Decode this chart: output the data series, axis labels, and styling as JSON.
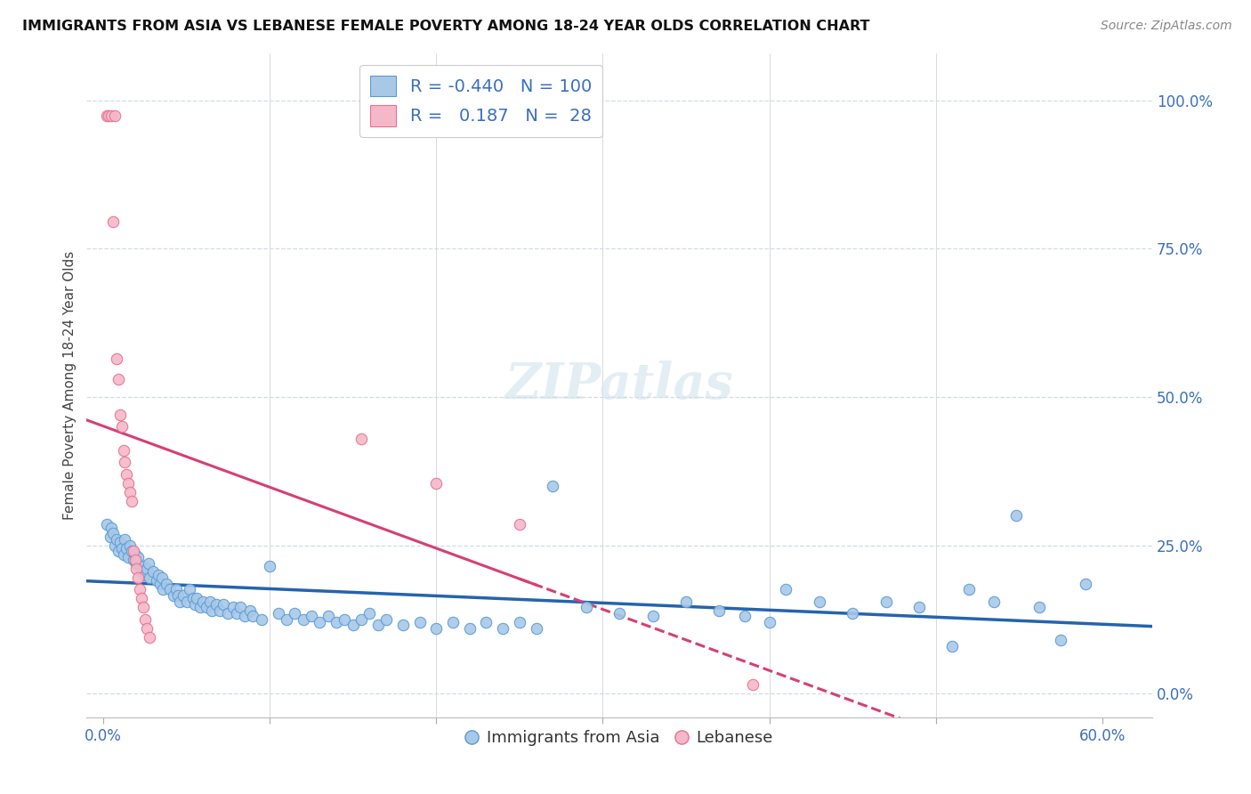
{
  "title": "IMMIGRANTS FROM ASIA VS LEBANESE FEMALE POVERTY AMONG 18-24 YEAR OLDS CORRELATION CHART",
  "source": "Source: ZipAtlas.com",
  "ylabel": "Female Poverty Among 18-24 Year Olds",
  "xlim": [
    -0.01,
    0.63
  ],
  "ylim": [
    -0.04,
    1.08
  ],
  "xlabel_ticks_show": [
    "0.0%",
    "60.0%"
  ],
  "xlabel_vals_show": [
    0.0,
    0.6
  ],
  "xlabel_ticks_minor": [
    0.1,
    0.2,
    0.3,
    0.4,
    0.5
  ],
  "ylabel_ticks": [
    "0.0%",
    "25.0%",
    "50.0%",
    "75.0%",
    "100.0%"
  ],
  "ylabel_vals": [
    0.0,
    0.25,
    0.5,
    0.75,
    1.0
  ],
  "watermark": "ZIPatlas",
  "blue_color": "#a8c8e8",
  "blue_edge_color": "#5b9bd5",
  "blue_line_color": "#2563ae",
  "pink_color": "#f4b8c8",
  "pink_edge_color": "#e87090",
  "pink_line_color": "#d64070",
  "grid_color": "#d0dce8",
  "background_color": "#ffffff",
  "text_color_blue": "#3a6fbf",
  "text_color_dark": "#444444",
  "scatter_blue": [
    [
      0.002,
      0.285
    ],
    [
      0.004,
      0.265
    ],
    [
      0.005,
      0.28
    ],
    [
      0.006,
      0.27
    ],
    [
      0.007,
      0.25
    ],
    [
      0.008,
      0.26
    ],
    [
      0.009,
      0.24
    ],
    [
      0.01,
      0.255
    ],
    [
      0.011,
      0.245
    ],
    [
      0.012,
      0.235
    ],
    [
      0.013,
      0.26
    ],
    [
      0.014,
      0.245
    ],
    [
      0.015,
      0.23
    ],
    [
      0.016,
      0.25
    ],
    [
      0.017,
      0.24
    ],
    [
      0.018,
      0.225
    ],
    [
      0.019,
      0.235
    ],
    [
      0.02,
      0.22
    ],
    [
      0.021,
      0.23
    ],
    [
      0.022,
      0.215
    ],
    [
      0.023,
      0.205
    ],
    [
      0.024,
      0.215
    ],
    [
      0.025,
      0.2
    ],
    [
      0.026,
      0.21
    ],
    [
      0.027,
      0.22
    ],
    [
      0.028,
      0.195
    ],
    [
      0.03,
      0.205
    ],
    [
      0.032,
      0.19
    ],
    [
      0.033,
      0.2
    ],
    [
      0.034,
      0.185
    ],
    [
      0.035,
      0.195
    ],
    [
      0.036,
      0.175
    ],
    [
      0.038,
      0.185
    ],
    [
      0.04,
      0.175
    ],
    [
      0.042,
      0.165
    ],
    [
      0.044,
      0.175
    ],
    [
      0.045,
      0.165
    ],
    [
      0.046,
      0.155
    ],
    [
      0.048,
      0.165
    ],
    [
      0.05,
      0.155
    ],
    [
      0.052,
      0.175
    ],
    [
      0.054,
      0.16
    ],
    [
      0.055,
      0.15
    ],
    [
      0.056,
      0.16
    ],
    [
      0.058,
      0.145
    ],
    [
      0.06,
      0.155
    ],
    [
      0.062,
      0.145
    ],
    [
      0.064,
      0.155
    ],
    [
      0.065,
      0.14
    ],
    [
      0.068,
      0.15
    ],
    [
      0.07,
      0.14
    ],
    [
      0.072,
      0.15
    ],
    [
      0.075,
      0.135
    ],
    [
      0.078,
      0.145
    ],
    [
      0.08,
      0.135
    ],
    [
      0.082,
      0.145
    ],
    [
      0.085,
      0.13
    ],
    [
      0.088,
      0.14
    ],
    [
      0.09,
      0.13
    ],
    [
      0.095,
      0.125
    ],
    [
      0.1,
      0.215
    ],
    [
      0.105,
      0.135
    ],
    [
      0.11,
      0.125
    ],
    [
      0.115,
      0.135
    ],
    [
      0.12,
      0.125
    ],
    [
      0.125,
      0.13
    ],
    [
      0.13,
      0.12
    ],
    [
      0.135,
      0.13
    ],
    [
      0.14,
      0.12
    ],
    [
      0.145,
      0.125
    ],
    [
      0.15,
      0.115
    ],
    [
      0.155,
      0.125
    ],
    [
      0.16,
      0.135
    ],
    [
      0.165,
      0.115
    ],
    [
      0.17,
      0.125
    ],
    [
      0.18,
      0.115
    ],
    [
      0.19,
      0.12
    ],
    [
      0.2,
      0.11
    ],
    [
      0.21,
      0.12
    ],
    [
      0.22,
      0.11
    ],
    [
      0.23,
      0.12
    ],
    [
      0.24,
      0.11
    ],
    [
      0.25,
      0.12
    ],
    [
      0.26,
      0.11
    ],
    [
      0.27,
      0.35
    ],
    [
      0.29,
      0.145
    ],
    [
      0.31,
      0.135
    ],
    [
      0.33,
      0.13
    ],
    [
      0.35,
      0.155
    ],
    [
      0.37,
      0.14
    ],
    [
      0.385,
      0.13
    ],
    [
      0.4,
      0.12
    ],
    [
      0.41,
      0.175
    ],
    [
      0.43,
      0.155
    ],
    [
      0.45,
      0.135
    ],
    [
      0.47,
      0.155
    ],
    [
      0.49,
      0.145
    ],
    [
      0.51,
      0.08
    ],
    [
      0.52,
      0.175
    ],
    [
      0.535,
      0.155
    ],
    [
      0.548,
      0.3
    ],
    [
      0.562,
      0.145
    ],
    [
      0.575,
      0.09
    ],
    [
      0.59,
      0.185
    ]
  ],
  "scatter_pink": [
    [
      0.002,
      0.975
    ],
    [
      0.003,
      0.975
    ],
    [
      0.005,
      0.975
    ],
    [
      0.007,
      0.975
    ],
    [
      0.006,
      0.795
    ],
    [
      0.008,
      0.565
    ],
    [
      0.009,
      0.53
    ],
    [
      0.01,
      0.47
    ],
    [
      0.011,
      0.45
    ],
    [
      0.012,
      0.41
    ],
    [
      0.013,
      0.39
    ],
    [
      0.014,
      0.37
    ],
    [
      0.015,
      0.355
    ],
    [
      0.016,
      0.34
    ],
    [
      0.017,
      0.325
    ],
    [
      0.018,
      0.24
    ],
    [
      0.019,
      0.225
    ],
    [
      0.02,
      0.21
    ],
    [
      0.021,
      0.195
    ],
    [
      0.022,
      0.175
    ],
    [
      0.023,
      0.16
    ],
    [
      0.024,
      0.145
    ],
    [
      0.025,
      0.125
    ],
    [
      0.026,
      0.11
    ],
    [
      0.028,
      0.095
    ],
    [
      0.155,
      0.43
    ],
    [
      0.2,
      0.355
    ],
    [
      0.25,
      0.285
    ],
    [
      0.39,
      0.015
    ]
  ],
  "title_fontsize": 11.5,
  "source_fontsize": 10,
  "axis_label_fontsize": 11,
  "tick_fontsize": 12,
  "legend_fontsize": 14,
  "watermark_fontsize": 40
}
